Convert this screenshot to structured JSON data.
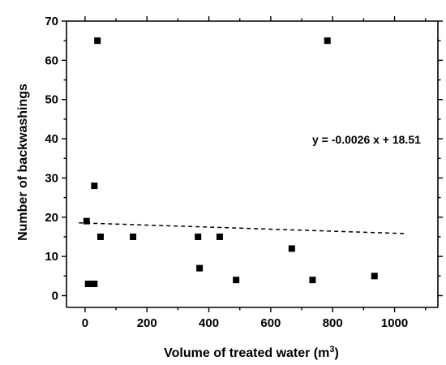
{
  "chart_data": {
    "type": "scatter",
    "title": "",
    "xlabel": "Volume of treated water (m",
    "xlabel_superscript": "3",
    "xlabel_suffix": ")",
    "ylabel": "Number of backwashings",
    "xlim": [
      -60,
      1140
    ],
    "ylim": [
      -3,
      70
    ],
    "x_ticks": [
      0,
      200,
      400,
      600,
      800,
      1000
    ],
    "y_ticks": [
      0,
      10,
      20,
      30,
      40,
      50,
      60,
      70
    ],
    "grid": false,
    "marker": "square",
    "series": [
      {
        "x": [
          5,
          10,
          30,
          30,
          40,
          50,
          155,
          365,
          370,
          435,
          488,
          668,
          735,
          783,
          935
        ],
        "y": [
          19,
          3,
          28,
          3,
          65,
          15,
          15,
          15,
          7,
          15,
          4,
          12,
          4,
          65,
          5
        ]
      }
    ],
    "trendline": {
      "slope": -0.0026,
      "intercept": 18.51,
      "x_range": [
        -20,
        1030
      ],
      "style": "dashed"
    },
    "annotations": [
      {
        "text": "y = -0.0026 x + 18.51"
      }
    ],
    "colors": {
      "marker": "#000000",
      "axis": "#000000",
      "trendline": "#000000"
    }
  }
}
